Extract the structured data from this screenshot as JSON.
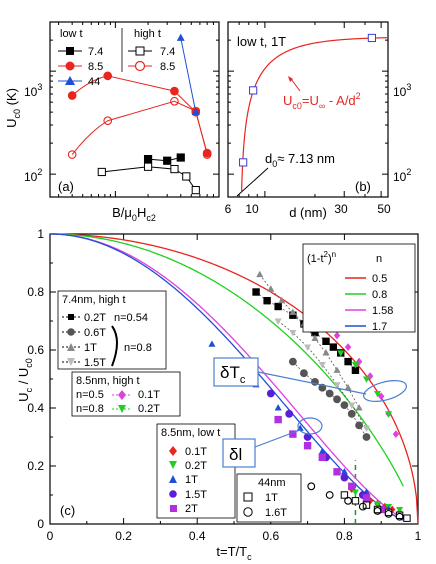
{
  "colors": {
    "red": "#e8251f",
    "blue": "#1f4fd6",
    "green": "#1fd11f",
    "magenta": "#e040e0",
    "black": "#000000",
    "gray": "#666666",
    "callout": "#4a7fd0"
  },
  "panel_a": {
    "ylabel": "U",
    "ylabel_sub": "c0",
    "ylabel_unit": " (K)",
    "xlabel_main": "B/μ",
    "xlabel_sub0": "0",
    "xlabel_mid": "H",
    "xlabel_sub1": "c2",
    "tag": "(a)",
    "yticks": [
      {
        "base": "10",
        "exp": "2"
      },
      {
        "base": "10",
        "exp": "3"
      }
    ],
    "legend_header_low": "low t",
    "legend_header_high": "high t",
    "legend": [
      {
        "label": "7.4",
        "label_high": "7.4"
      },
      {
        "label": "8.5",
        "label_high": "8.5"
      },
      {
        "label": "44"
      }
    ]
  },
  "panel_b": {
    "header": "low t, 1T",
    "formula_main": "U",
    "formula_sub": "c0",
    "formula_rest": "=U",
    "formula_inf": "∞",
    "formula_tail": " - A/d",
    "formula_exp": "2",
    "d0_main": "d",
    "d0_sub": "0",
    "d0_rest": "≈ 7.13 nm",
    "tag": "(b)",
    "xlabel": "d (nm)",
    "xticks": [
      "6",
      "10",
      "30",
      "50"
    ],
    "yticks": [
      {
        "base": "10",
        "exp": "2"
      },
      {
        "base": "10",
        "exp": "3"
      }
    ]
  },
  "panel_c": {
    "tag": "(c)",
    "ylabel_main": "U",
    "ylabel_sub1": "c",
    "ylabel_mid": " / U",
    "ylabel_sub2": "c0",
    "xlabel_main": "t=T/T",
    "xlabel_sub": "c",
    "xticks": [
      "0",
      "0.2",
      "0.4",
      "0.6",
      "0.8",
      "1"
    ],
    "yticks": [
      "0",
      "0.2",
      "0.4",
      "0.6",
      "0.8",
      "1"
    ],
    "fit_legend": {
      "title_main": "(1-t",
      "title_exp": "2",
      "title_tail": ")",
      "title_n": "n",
      "n_header": "n",
      "items": [
        {
          "label": "0.5",
          "color": "#e8251f"
        },
        {
          "label": "0.8",
          "color": "#1fd11f"
        },
        {
          "label": "1.58",
          "color": "#e040e0"
        },
        {
          "label": "1.7",
          "color": "#1f4fd6"
        }
      ]
    },
    "legend_74": {
      "title": "7.4nm, high t",
      "items": [
        {
          "label": "0.2T",
          "extra": "n=0.54"
        },
        {
          "label": "0.6T"
        },
        {
          "label": "1T"
        },
        {
          "label": "1.5T"
        }
      ],
      "brace_label": "n=0.8"
    },
    "legend_85h": {
      "title": "8.5nm, high t",
      "row1": "n=0.5",
      "row2": "n=0.8",
      "items": [
        {
          "label": "0.1T"
        },
        {
          "label": "0.2T"
        }
      ]
    },
    "legend_85l": {
      "title": "8.5nm, low t",
      "items": [
        {
          "label": "0.1T"
        },
        {
          "label": "0.2T"
        },
        {
          "label": "1T"
        },
        {
          "label": "1.5T"
        },
        {
          "label": "2T"
        }
      ]
    },
    "legend_44": {
      "title": "44nm",
      "items": [
        {
          "label": "1T"
        },
        {
          "label": "1.6T"
        }
      ]
    },
    "callout_dTc_main": "δT",
    "callout_dTc_sub": "c",
    "callout_dI": "δl"
  },
  "chart_data": [
    {
      "panel": "(a)",
      "type": "scatter",
      "xlabel": "B/μ0Hc2",
      "ylabel": "Uc0 (K)",
      "yscale": "log",
      "xscale": "log",
      "ylim": [
        60,
        3000
      ],
      "series": [
        {
          "name": "7.4 low t",
          "marker": "filled-square",
          "color": "#000000",
          "x": [
            0.2,
            0.3,
            0.4
          ],
          "y": [
            140,
            135,
            145
          ]
        },
        {
          "name": "7.4 high t",
          "marker": "open-square",
          "color": "#000000",
          "x": [
            0.075,
            0.2,
            0.35,
            0.45,
            0.55
          ],
          "y": [
            105,
            118,
            112,
            95,
            70
          ]
        },
        {
          "name": "8.5 low t",
          "marker": "filled-circle",
          "color": "#e8251f",
          "x": [
            0.04,
            0.085,
            0.35,
            0.55,
            0.7
          ],
          "y": [
            580,
            900,
            640,
            400,
            160
          ]
        },
        {
          "name": "8.5 high t",
          "marker": "open-circle",
          "color": "#e8251f",
          "x": [
            0.04,
            0.085,
            0.35,
            0.55,
            0.7
          ],
          "y": [
            155,
            330,
            510,
            410,
            155
          ]
        },
        {
          "name": "44 low t",
          "marker": "filled-triangle",
          "color": "#1f4fd6",
          "x": [
            0.4,
            0.55
          ],
          "y": [
            2100,
            400
          ]
        }
      ]
    },
    {
      "panel": "(b)",
      "type": "scatter",
      "xlabel": "d (nm)",
      "ylabel": "Uc0 (K)",
      "yscale": "log",
      "xscale": "log",
      "xlim": [
        6,
        55
      ],
      "ylim": [
        60,
        3000
      ],
      "points": {
        "x": [
          7.4,
          8.5,
          44
        ],
        "y": [
          130,
          650,
          2100
        ]
      },
      "fit": {
        "formula": "Uc0=U∞ - A/d^2",
        "d0_nm": 7.13,
        "U_inf": 2150
      }
    },
    {
      "panel": "(c)",
      "type": "line+scatter",
      "xlabel": "t=T/Tc",
      "ylabel": "Uc / Uc0",
      "xlim": [
        0,
        1
      ],
      "ylim": [
        0,
        1
      ],
      "fits": [
        {
          "name": "n=0.5",
          "n": 0.5,
          "color": "#e8251f",
          "tmax": 1.0
        },
        {
          "name": "n=0.8",
          "n": 0.8,
          "color": "#1fd11f",
          "tmax": 0.96
        },
        {
          "name": "n=1.58",
          "n": 1.58,
          "color": "#e040e0",
          "tmax": 0.96
        },
        {
          "name": "n=1.7",
          "n": 1.7,
          "color": "#1f4fd6",
          "tmax": 0.96
        }
      ],
      "dashed_vline_t": 0.83,
      "series": [
        {
          "name": "7.4nm high t 0.2T",
          "marker": "filled-square",
          "color": "#000000",
          "x": [
            0.56,
            0.59,
            0.62,
            0.66,
            0.69,
            0.72,
            0.75,
            0.77,
            0.79,
            0.81,
            0.83
          ],
          "y": [
            0.8,
            0.77,
            0.75,
            0.72,
            0.69,
            0.66,
            0.63,
            0.61,
            0.59,
            0.56,
            0.53
          ]
        },
        {
          "name": "7.4nm high t 0.6T",
          "marker": "filled-circle",
          "color": "#555555",
          "x": [
            0.66,
            0.69,
            0.72,
            0.74,
            0.76,
            0.78,
            0.8,
            0.82,
            0.84,
            0.86
          ],
          "y": [
            0.56,
            0.52,
            0.49,
            0.47,
            0.45,
            0.43,
            0.41,
            0.38,
            0.34,
            0.3
          ]
        },
        {
          "name": "7.4nm high t 1T",
          "marker": "filled-triangle",
          "color": "#888888",
          "x": [
            0.57,
            0.6,
            0.63,
            0.66,
            0.69,
            0.72,
            0.75,
            0.78,
            0.81,
            0.84
          ],
          "y": [
            0.86,
            0.81,
            0.77,
            0.73,
            0.69,
            0.64,
            0.59,
            0.53,
            0.47,
            0.4
          ]
        },
        {
          "name": "7.4nm high t 1.5T",
          "marker": "filled-tri-down",
          "color": "#bbbbbb",
          "x": [
            0.62,
            0.66,
            0.7,
            0.74,
            0.78,
            0.82,
            0.86
          ],
          "y": [
            0.7,
            0.66,
            0.61,
            0.55,
            0.48,
            0.41,
            0.33
          ]
        },
        {
          "name": "8.5nm high t 0.1T",
          "marker": "filled-diamond",
          "color": "#e040e0",
          "x": [
            0.78,
            0.81,
            0.84,
            0.87,
            0.9,
            0.92,
            0.94
          ],
          "y": [
            0.65,
            0.61,
            0.56,
            0.51,
            0.44,
            0.38,
            0.31
          ]
        },
        {
          "name": "8.5nm high t 0.2T",
          "marker": "filled-tri-down",
          "color": "#1fd11f",
          "x": [
            0.79,
            0.83,
            0.86,
            0.89,
            0.92
          ],
          "y": [
            0.59,
            0.55,
            0.5,
            0.45,
            0.38
          ]
        },
        {
          "name": "8.5nm low t 0.1T",
          "marker": "filled-diamond",
          "color": "#e8251f",
          "x": [
            0.82,
            0.85,
            0.87,
            0.89,
            0.91,
            0.93,
            0.95
          ],
          "y": [
            0.12,
            0.1,
            0.08,
            0.07,
            0.06,
            0.05,
            0.04
          ]
        },
        {
          "name": "8.5nm low t 0.2T",
          "marker": "filled-tri-down",
          "color": "#1fd11f",
          "x": [
            0.83,
            0.86,
            0.89,
            0.92,
            0.95
          ],
          "y": [
            0.11,
            0.09,
            0.07,
            0.06,
            0.05
          ]
        },
        {
          "name": "8.5nm low t 1T",
          "marker": "filled-triangle",
          "color": "#1f4fd6",
          "x": [
            0.44,
            0.5,
            0.56,
            0.62,
            0.68,
            0.74,
            0.8,
            0.86,
            0.92
          ],
          "y": [
            0.62,
            0.55,
            0.48,
            0.4,
            0.33,
            0.25,
            0.18,
            0.11,
            0.05
          ]
        },
        {
          "name": "8.5nm low t 1.5T",
          "marker": "filled-circle",
          "color": "#5a1fd6",
          "x": [
            0.55,
            0.6,
            0.65,
            0.7,
            0.75,
            0.8,
            0.85
          ],
          "y": [
            0.52,
            0.45,
            0.38,
            0.3,
            0.23,
            0.16,
            0.1
          ]
        },
        {
          "name": "8.5nm low t 2T",
          "marker": "filled-square",
          "color": "#b030e0",
          "x": [
            0.62,
            0.66,
            0.7,
            0.74,
            0.78,
            0.82,
            0.86,
            0.9
          ],
          "y": [
            0.36,
            0.31,
            0.27,
            0.23,
            0.18,
            0.13,
            0.09,
            0.05
          ]
        },
        {
          "name": "44nm low t 1T",
          "marker": "open-square",
          "color": "#000000",
          "x": [
            0.8,
            0.83,
            0.86,
            0.89,
            0.92,
            0.95,
            0.97
          ],
          "y": [
            0.1,
            0.08,
            0.065,
            0.05,
            0.04,
            0.03,
            0.02
          ]
        },
        {
          "name": "44nm low t 1.6T",
          "marker": "open-circle",
          "color": "#000000",
          "x": [
            0.66,
            0.71,
            0.76,
            0.81,
            0.85,
            0.89,
            0.92,
            0.95
          ],
          "y": [
            0.16,
            0.13,
            0.1,
            0.08,
            0.06,
            0.045,
            0.035,
            0.025
          ]
        }
      ]
    }
  ]
}
